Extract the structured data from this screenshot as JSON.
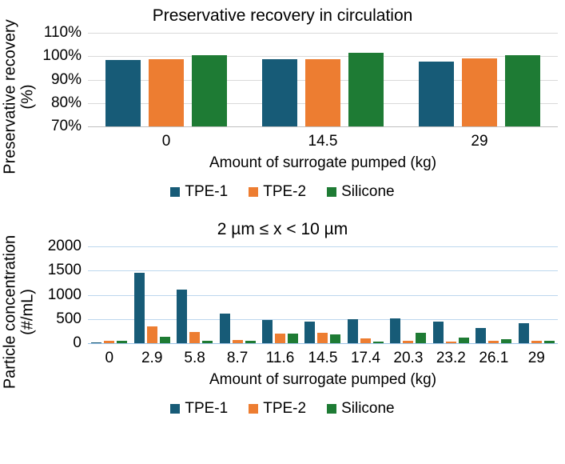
{
  "colors": {
    "series": [
      "#175B77",
      "#ED7D31",
      "#1E7B34"
    ],
    "background": "#FFFFFF",
    "text": "#000000"
  },
  "chart_data": [
    {
      "type": "bar",
      "title": "Preservative recovery in circulation",
      "ylabel": "Preservative recovery",
      "ylabel_unit": "(%)",
      "xlabel": "Amount of surrogate pumped (kg)",
      "categories": [
        "0",
        "14.5",
        "29"
      ],
      "series": [
        {
          "name": "TPE-1",
          "values": [
            98.4,
            98.8,
            97.8
          ]
        },
        {
          "name": "TPE-2",
          "values": [
            98.7,
            98.8,
            99.0
          ]
        },
        {
          "name": "Silicone",
          "values": [
            100.3,
            101.6,
            100.5
          ]
        }
      ],
      "ylim": [
        70,
        110
      ],
      "yticks": [
        70,
        80,
        90,
        100,
        110
      ],
      "ytick_labels": [
        "70%",
        "80%",
        "90%",
        "100%",
        "110%"
      ],
      "grid": true,
      "grid_color": "#D9D9D9",
      "axis_color": "#BFBFBF",
      "legend": [
        "TPE-1",
        "TPE-2",
        "Silicone"
      ],
      "legend_position": "bottom"
    },
    {
      "type": "bar",
      "title": "2 µm ≤ x < 10 µm",
      "ylabel": "Particle concentration",
      "ylabel_unit": "(#/mL)",
      "xlabel": "Amount of surrogate pumped (kg)",
      "categories": [
        "0",
        "2.9",
        "5.8",
        "8.7",
        "11.6",
        "14.5",
        "17.4",
        "20.3",
        "23.2",
        "26.1",
        "29"
      ],
      "series": [
        {
          "name": "TPE-1",
          "values": [
            25,
            1460,
            1110,
            610,
            480,
            455,
            505,
            515,
            450,
            310,
            410
          ]
        },
        {
          "name": "TPE-2",
          "values": [
            45,
            350,
            230,
            70,
            195,
            225,
            100,
            50,
            30,
            50,
            45
          ]
        },
        {
          "name": "Silicone",
          "values": [
            45,
            130,
            55,
            60,
            200,
            190,
            35,
            225,
            115,
            85,
            50
          ]
        }
      ],
      "ylim": [
        0,
        2000
      ],
      "yticks": [
        0,
        500,
        1000,
        1500,
        2000
      ],
      "ytick_labels": [
        "0",
        "500",
        "1000",
        "1500",
        "2000"
      ],
      "grid": true,
      "grid_color": "#BDD7EE",
      "axis_color": "#9CC2E5",
      "legend": [
        "TPE-1",
        "TPE-2",
        "Silicone"
      ],
      "legend_position": "bottom"
    }
  ]
}
